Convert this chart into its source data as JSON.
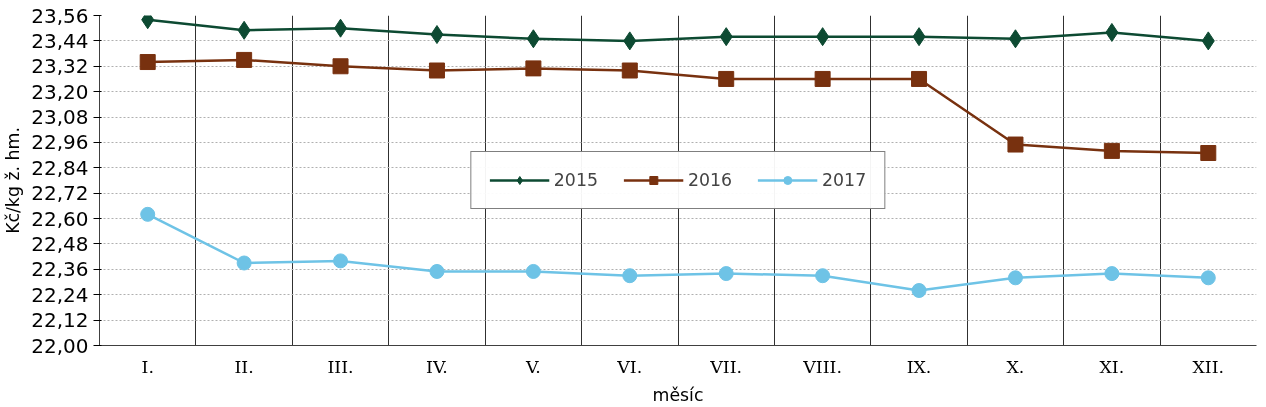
{
  "chart_data": {
    "type": "line",
    "xlabel": "měsíc",
    "ylabel": "Kč/kg ž. hm.",
    "categories": [
      "I.",
      "II.",
      "III.",
      "IV.",
      "V.",
      "VI.",
      "VII.",
      "VIII.",
      "IX.",
      "X.",
      "XI.",
      "XII."
    ],
    "series": [
      {
        "name": "2015",
        "color": "#0d4a32",
        "marker": "diamond",
        "values": [
          23.54,
          23.49,
          23.5,
          23.47,
          23.45,
          23.44,
          23.46,
          23.46,
          23.46,
          23.45,
          23.48,
          23.44
        ]
      },
      {
        "name": "2016",
        "color": "#78310f",
        "marker": "square",
        "values": [
          23.34,
          23.35,
          23.32,
          23.3,
          23.31,
          23.3,
          23.26,
          23.26,
          23.26,
          22.95,
          22.92,
          22.91
        ]
      },
      {
        "name": "2017",
        "color": "#6ec3e6",
        "marker": "circle",
        "values": [
          22.62,
          22.39,
          22.4,
          22.35,
          22.35,
          22.33,
          22.34,
          22.33,
          22.26,
          22.32,
          22.34,
          22.32
        ]
      }
    ],
    "ylim": [
      22.0,
      23.56
    ],
    "yticks": [
      {
        "value": 22.0,
        "label": "22,00"
      },
      {
        "value": 22.12,
        "label": "22,12"
      },
      {
        "value": 22.24,
        "label": "22,24"
      },
      {
        "value": 22.36,
        "label": "22,36"
      },
      {
        "value": 22.48,
        "label": "22,48"
      },
      {
        "value": 22.6,
        "label": "22,60"
      },
      {
        "value": 22.72,
        "label": "22,72"
      },
      {
        "value": 22.84,
        "label": "22,84"
      },
      {
        "value": 22.96,
        "label": "22,96"
      },
      {
        "value": 23.08,
        "label": "23,08"
      },
      {
        "value": 23.2,
        "label": "23,20"
      },
      {
        "value": 23.32,
        "label": "23,32"
      },
      {
        "value": 23.44,
        "label": "23,44"
      },
      {
        "value": 23.56,
        "label": "23,56"
      }
    ],
    "grid": true,
    "legend": "center",
    "line_style": "solid"
  }
}
